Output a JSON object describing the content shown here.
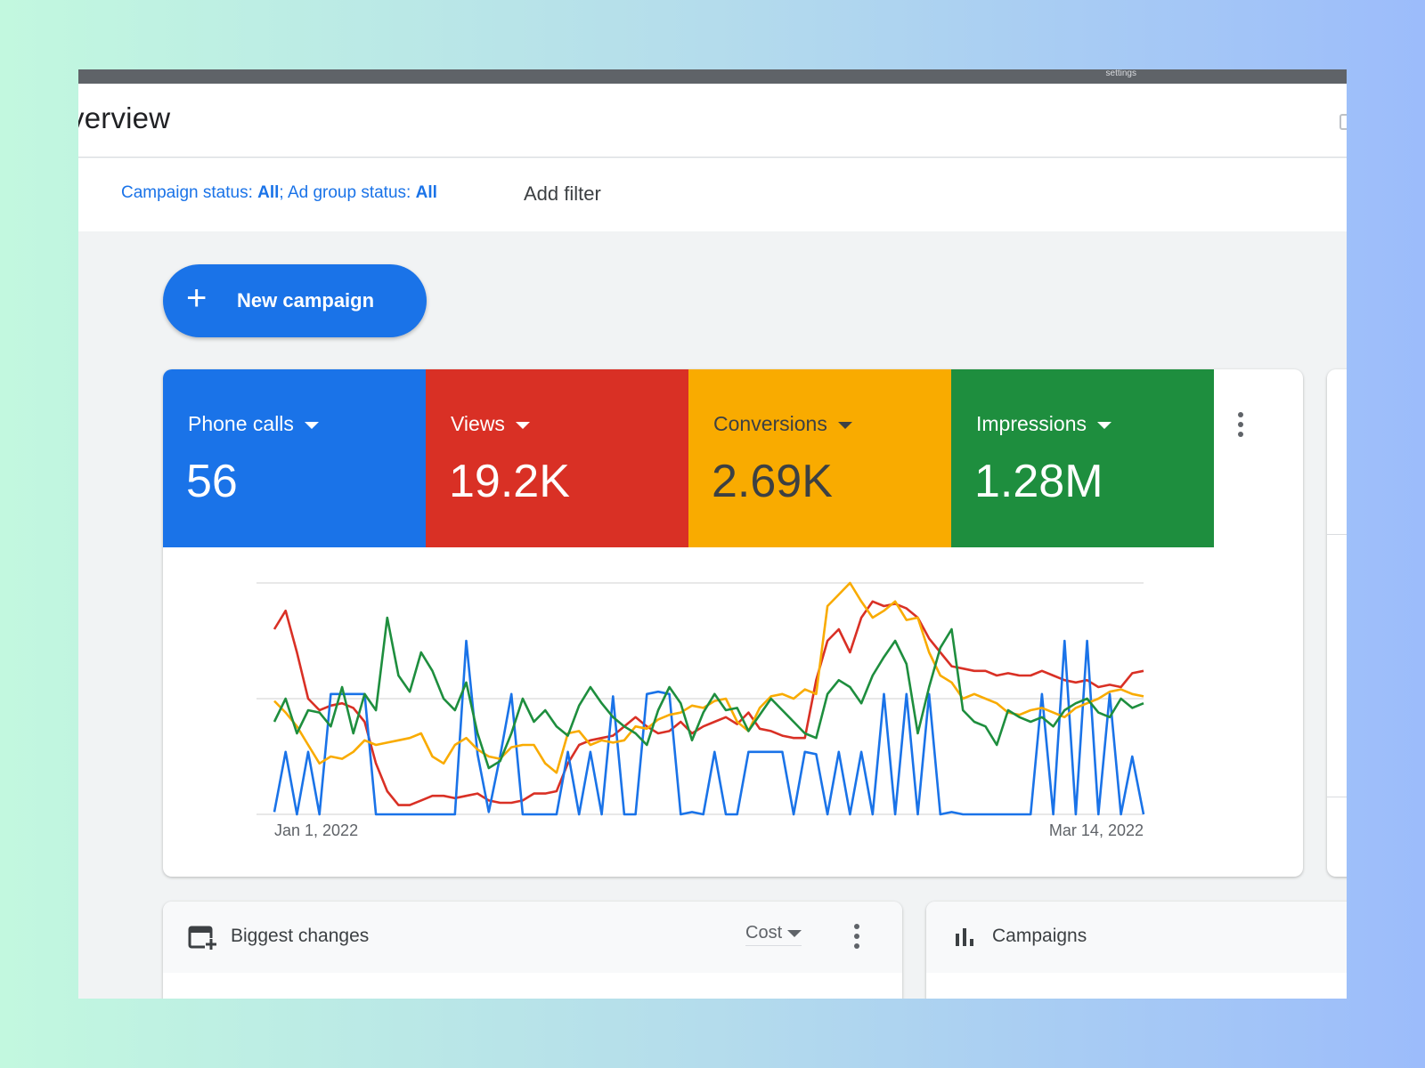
{
  "topbar": {
    "settings_label": "settings"
  },
  "header": {
    "title": "verview"
  },
  "filters": {
    "campaign_status_label": "Campaign status: ",
    "campaign_status_value": "All",
    "separator": "; ",
    "ad_group_status_label": "Ad group status: ",
    "ad_group_status_value": "All",
    "add_filter": "Add filter"
  },
  "new_campaign": {
    "icon": "plus-icon",
    "label": "New campaign"
  },
  "metrics": [
    {
      "name": "Phone calls",
      "value": "56",
      "color": "#1a73e8",
      "text_color": "#ffffff"
    },
    {
      "name": "Views",
      "value": "19.2K",
      "color": "#d93025",
      "text_color": "#ffffff"
    },
    {
      "name": "Conversions",
      "value": "2.69K",
      "color": "#f9ab00",
      "text_color": "#3c4043"
    },
    {
      "name": "Impressions",
      "value": "1.28M",
      "color": "#1e8e3e",
      "text_color": "#ffffff"
    }
  ],
  "chart_data": {
    "type": "line",
    "x_start_label": "Jan 1, 2022",
    "x_end_label": "Mar 14, 2022",
    "ylim": [
      0,
      100
    ],
    "grid": true,
    "series": [
      {
        "color": "#d93025",
        "values": [
          80,
          88,
          70,
          50,
          45,
          47,
          48,
          46,
          40,
          22,
          10,
          4,
          4,
          6,
          8,
          8,
          7,
          8,
          9,
          6,
          5,
          5,
          6,
          9,
          9,
          10,
          22,
          30,
          32,
          33,
          34,
          38,
          42,
          38,
          35,
          36,
          40,
          35,
          38,
          40,
          42,
          39,
          44,
          37,
          36,
          34,
          33,
          33,
          58,
          75,
          80,
          70,
          85,
          92,
          90,
          91,
          89,
          85,
          76,
          70,
          64,
          63,
          62,
          62,
          60,
          61,
          60,
          60,
          62,
          60,
          58,
          57,
          58,
          55,
          56,
          55,
          61,
          62
        ]
      },
      {
        "color": "#1a73e8",
        "values": [
          1,
          27,
          0,
          27,
          0,
          52,
          52,
          52,
          52,
          0,
          0,
          0,
          0,
          0,
          0,
          0,
          0,
          75,
          26,
          1,
          25,
          52,
          0,
          0,
          0,
          0,
          27,
          0,
          27,
          0,
          51,
          0,
          0,
          52,
          53,
          52,
          0,
          1,
          0,
          27,
          0,
          0,
          27,
          27,
          27,
          27,
          0,
          27,
          26,
          0,
          27,
          0,
          27,
          0,
          52,
          0,
          52,
          0,
          52,
          0,
          1,
          0,
          0,
          0,
          0,
          0,
          0,
          0,
          52,
          0,
          75,
          0,
          75,
          0,
          52,
          0,
          25,
          0
        ]
      },
      {
        "color": "#f9ab00",
        "values": [
          49,
          44,
          38,
          30,
          22,
          25,
          24,
          27,
          32,
          30,
          31,
          32,
          33,
          35,
          25,
          22,
          30,
          33,
          28,
          25,
          24,
          29,
          30,
          30,
          22,
          18,
          35,
          36,
          30,
          32,
          31,
          32,
          38,
          37,
          41,
          43,
          44,
          47,
          46,
          49,
          50,
          40,
          36,
          46,
          51,
          52,
          50,
          54,
          52,
          90,
          95,
          100,
          92,
          85,
          88,
          92,
          84,
          85,
          70,
          60,
          57,
          50,
          52,
          50,
          48,
          44,
          43,
          45,
          46,
          44,
          42,
          46,
          48,
          50,
          53,
          54,
          52,
          51
        ]
      },
      {
        "color": "#1e8e3e",
        "values": [
          40,
          50,
          35,
          45,
          44,
          38,
          55,
          35,
          52,
          45,
          85,
          60,
          53,
          70,
          62,
          50,
          45,
          57,
          35,
          20,
          23,
          35,
          50,
          40,
          45,
          38,
          34,
          47,
          55,
          48,
          42,
          38,
          35,
          30,
          45,
          55,
          48,
          32,
          44,
          52,
          45,
          46,
          36,
          43,
          50,
          45,
          40,
          35,
          33,
          52,
          58,
          55,
          48,
          60,
          68,
          75,
          65,
          35,
          55,
          72,
          80,
          45,
          40,
          38,
          30,
          45,
          42,
          40,
          42,
          38,
          45,
          48,
          50,
          44,
          42,
          50,
          46,
          48
        ]
      }
    ]
  },
  "biggest_changes": {
    "icon": "calendar-add-icon",
    "title": "Biggest changes",
    "sort_value": "Cost"
  },
  "campaigns": {
    "icon": "bar-chart-icon",
    "title": "Campaigns"
  }
}
